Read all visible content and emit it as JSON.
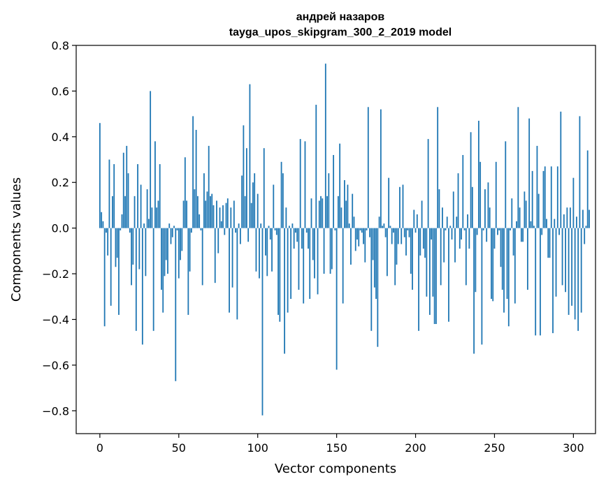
{
  "chart_data": {
    "type": "bar",
    "title": [
      "андрей назаров",
      "tayga_upos_skipgram_300_2_2019 model"
    ],
    "xlabel": "Vector components",
    "ylabel": "Components values",
    "xlim": [
      -15,
      314
    ],
    "ylim": [
      -0.9,
      0.8
    ],
    "xticks": [
      0,
      50,
      100,
      150,
      200,
      250,
      300
    ],
    "yticks": [
      -0.8,
      -0.6,
      -0.4,
      -0.2,
      0.0,
      0.2,
      0.4,
      0.6,
      0.8
    ],
    "ytick_labels": [
      "−0.8",
      "−0.6",
      "−0.4",
      "−0.2",
      "0.0",
      "0.2",
      "0.4",
      "0.6",
      "0.8"
    ],
    "xtick_labels": [
      "0",
      "50",
      "100",
      "150",
      "200",
      "250",
      "300"
    ],
    "grid": false,
    "bar_color": "#1f77b4",
    "values": [
      0.46,
      0.07,
      0.03,
      -0.43,
      -0.02,
      -0.12,
      0.3,
      -0.34,
      0.14,
      0.28,
      -0.17,
      -0.13,
      -0.38,
      -0.01,
      0.06,
      0.33,
      0.14,
      0.36,
      0.24,
      -0.02,
      -0.25,
      -0.16,
      0.14,
      -0.45,
      0.28,
      -0.18,
      0.19,
      -0.51,
      0.02,
      -0.21,
      0.17,
      0.04,
      0.6,
      0.09,
      -0.45,
      0.38,
      0.09,
      0.12,
      0.28,
      -0.27,
      -0.37,
      -0.21,
      -0.14,
      -0.2,
      0.02,
      -0.07,
      -0.04,
      0.01,
      -0.67,
      -0.01,
      -0.22,
      -0.14,
      -0.1,
      0.12,
      0.31,
      0.12,
      -0.38,
      -0.19,
      -0.02,
      0.49,
      0.17,
      0.43,
      0.14,
      0.06,
      -0.01,
      -0.25,
      0.24,
      0.12,
      0.16,
      0.36,
      0.14,
      0.15,
      0.1,
      -0.24,
      0.12,
      -0.11,
      0.09,
      0.03,
      0.1,
      -0.03,
      0.11,
      0.13,
      -0.37,
      0.09,
      -0.26,
      0.12,
      -0.02,
      -0.4,
      0.02,
      -0.07,
      0.23,
      0.45,
      0.14,
      0.35,
      -0.06,
      0.63,
      0.11,
      0.2,
      0.24,
      -0.19,
      0.15,
      -0.22,
      0.02,
      -0.82,
      0.35,
      -0.12,
      -0.21,
      0.01,
      -0.05,
      -0.19,
      0.19,
      -0.01,
      -0.03,
      -0.38,
      -0.41,
      0.29,
      0.24,
      -0.55,
      0.09,
      -0.37,
      0.01,
      -0.31,
      0.02,
      -0.09,
      -0.02,
      -0.06,
      -0.27,
      0.39,
      -0.09,
      -0.33,
      0.38,
      -0.02,
      -0.09,
      -0.31,
      0.13,
      -0.14,
      -0.22,
      0.54,
      -0.29,
      0.12,
      0.14,
      0.13,
      -0.2,
      0.72,
      0.14,
      0.24,
      -0.2,
      -0.18,
      0.32,
      -0.01,
      -0.62,
      0.14,
      0.37,
      0.09,
      -0.33,
      0.21,
      0.12,
      0.19,
      0.02,
      -0.16,
      0.15,
      0.05,
      -0.1,
      -0.05,
      -0.08,
      -0.01,
      -0.02,
      -0.07,
      -0.15,
      -0.01,
      0.53,
      -0.04,
      -0.45,
      -0.14,
      -0.26,
      -0.31,
      -0.52,
      0.05,
      0.52,
      0.01,
      0.02,
      -0.04,
      -0.21,
      0.22,
      0.01,
      -0.07,
      -0.02,
      -0.25,
      -0.16,
      -0.07,
      0.18,
      -0.07,
      0.19,
      -0.04,
      -0.12,
      -0.01,
      -0.04,
      -0.2,
      -0.27,
      0.08,
      -0.02,
      0.06,
      -0.45,
      -0.12,
      0.12,
      -0.09,
      -0.13,
      -0.3,
      0.39,
      -0.38,
      -0.05,
      -0.3,
      -0.42,
      -0.42,
      0.53,
      0.17,
      -0.25,
      0.09,
      -0.15,
      -0.01,
      0.05,
      -0.41,
      0.01,
      -0.05,
      0.16,
      -0.15,
      0.05,
      0.24,
      -0.09,
      -0.05,
      0.32,
      -0.01,
      -0.25,
      0.06,
      -0.09,
      0.42,
      0.18,
      -0.55,
      -0.28,
      -0.03,
      0.47,
      0.29,
      -0.51,
      -0.01,
      0.17,
      -0.06,
      0.2,
      0.09,
      -0.31,
      -0.32,
      -0.09,
      0.29,
      -0.03,
      -0.01,
      -0.17,
      -0.27,
      -0.37,
      0.38,
      -0.31,
      -0.43,
      -0.01,
      0.13,
      -0.12,
      -0.33,
      0.03,
      0.53,
      0.09,
      -0.06,
      -0.06,
      0.16,
      0.12,
      -0.27,
      0.48,
      0.03,
      0.25,
      0.01,
      -0.47,
      0.36,
      0.15,
      -0.47,
      -0.03,
      0.25,
      0.27,
      0.04,
      -0.13,
      -0.13,
      0.27,
      -0.46,
      0.04,
      -0.3,
      0.27,
      -0.03,
      0.51,
      -0.25,
      0.06,
      -0.28,
      0.09,
      -0.38,
      0.09,
      -0.34,
      0.22,
      -0.4,
      0.05,
      -0.45,
      0.49,
      -0.37,
      0.08,
      -0.07,
      0.01,
      0.34,
      0.08
    ]
  }
}
